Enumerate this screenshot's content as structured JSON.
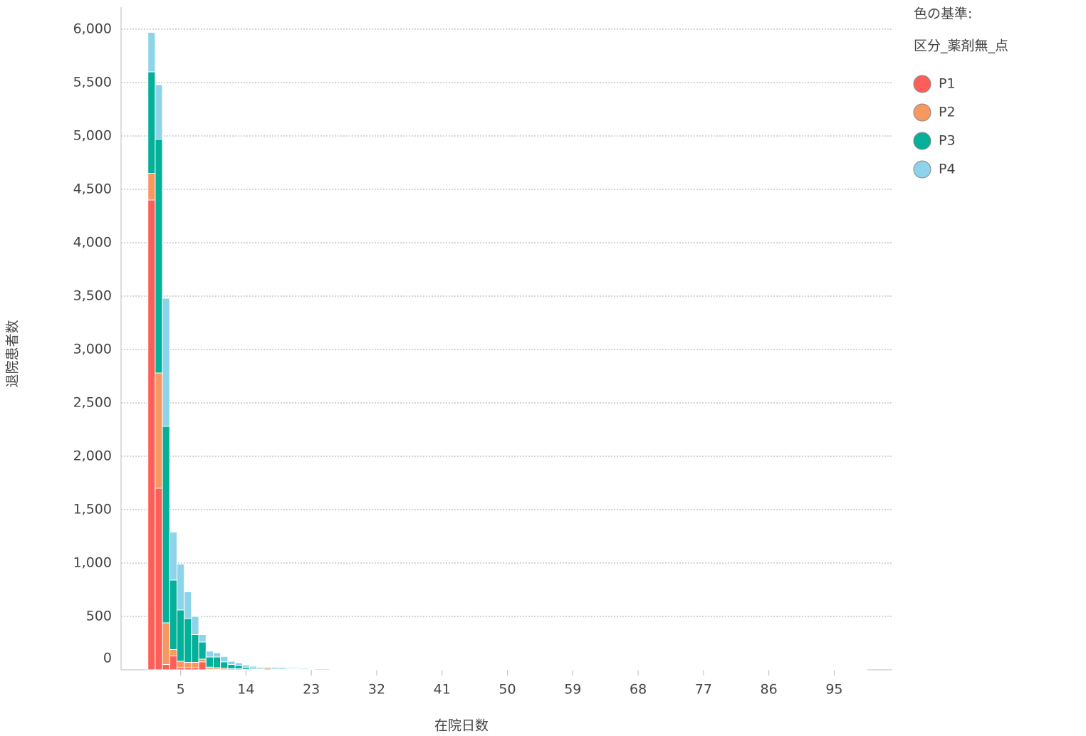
{
  "chart_data": {
    "type": "stacked_histogram",
    "y_label": "退院患者数",
    "x_label": "在院日数",
    "legend_title": [
      "色の基準:",
      "区分_薬剤無_点"
    ],
    "legend": "right-top",
    "grid": true,
    "xlim": [
      -3.2,
      103
    ],
    "xticks": [
      5,
      14,
      23,
      32,
      41,
      50,
      59,
      68,
      77,
      86,
      95
    ],
    "ylim": [
      0,
      6000
    ],
    "yticks": [
      0,
      500,
      {
        "value": 1000,
        "label": "1,000"
      },
      {
        "value": 1500,
        "label": "1,500"
      },
      {
        "value": 2000,
        "label": "2,000"
      },
      {
        "value": 2500,
        "label": "2,500"
      },
      {
        "value": 3000,
        "label": "3,000"
      },
      {
        "value": 3500,
        "label": "3,500"
      },
      {
        "value": 4000,
        "label": "4,000"
      },
      {
        "value": 4500,
        "label": "4,500"
      },
      {
        "value": 5000,
        "label": "5,000"
      },
      {
        "value": 5500,
        "label": "5,500"
      },
      {
        "value": 6000,
        "label": "6,000"
      }
    ],
    "x": [
      1,
      2,
      3,
      4,
      5,
      6,
      7,
      8,
      9,
      10,
      11,
      12,
      13,
      14,
      15,
      16,
      17,
      18,
      19,
      20,
      21,
      22,
      23,
      24,
      25,
      26,
      27,
      28,
      29,
      30,
      31,
      32,
      33,
      34,
      35,
      36,
      37,
      38,
      39,
      40,
      41,
      42,
      43,
      44,
      45,
      46,
      47,
      48,
      49,
      50,
      51,
      52,
      53,
      54,
      55,
      56,
      57,
      58,
      59,
      60,
      61,
      62,
      63,
      64,
      65,
      66,
      67,
      68,
      69,
      70,
      71,
      72,
      73,
      74,
      75,
      76,
      77,
      78,
      79,
      80,
      81,
      82,
      83,
      84,
      85,
      86,
      87,
      88,
      89,
      90,
      91,
      92,
      93,
      94,
      95,
      96,
      97,
      98,
      99
    ],
    "series": [
      {
        "name": "P1",
        "color": "#fd5f58",
        "values": [
          4400,
          1700,
          50,
          130,
          20,
          20,
          20,
          75,
          5,
          5,
          0,
          0,
          0,
          0,
          5,
          0,
          0,
          0,
          0,
          0,
          0,
          0,
          0,
          0,
          0,
          0,
          0,
          0,
          0,
          0,
          0,
          0,
          0,
          0,
          0,
          0,
          0,
          0,
          0,
          0,
          0,
          0,
          0,
          0,
          0,
          5,
          0,
          0,
          0,
          0,
          0,
          0,
          0,
          0,
          0,
          0,
          0,
          0,
          0,
          0,
          0,
          0,
          0,
          0,
          0,
          0,
          0,
          0,
          0,
          0,
          0,
          0,
          0,
          0,
          0,
          0,
          0,
          0,
          0,
          0,
          0,
          0,
          0,
          5,
          0,
          0,
          0,
          0,
          0,
          0,
          0,
          0,
          0,
          0,
          0,
          0,
          0,
          0,
          0
        ]
      },
      {
        "name": "P2",
        "color": "#f8975f",
        "values": [
          250,
          1080,
          390,
          60,
          60,
          50,
          50,
          25,
          20,
          15,
          15,
          10,
          10,
          5,
          5,
          5,
          15,
          5,
          5,
          5,
          5,
          0,
          0,
          0,
          0,
          0,
          0,
          0,
          0,
          0,
          0,
          0,
          0,
          0,
          0,
          0,
          0,
          0,
          0,
          0,
          0,
          0,
          0,
          0,
          5,
          5,
          0,
          5,
          5,
          0,
          5,
          5,
          0,
          0,
          5,
          5,
          5,
          0,
          5,
          5,
          0,
          5,
          5,
          5,
          5,
          0,
          5,
          5,
          0,
          0,
          5,
          5,
          0,
          5,
          5,
          0,
          0,
          5,
          0,
          5,
          5,
          5,
          0,
          0,
          5,
          0,
          0,
          5,
          5,
          0,
          5,
          5,
          5,
          5,
          5,
          0,
          5,
          0,
          0
        ]
      },
      {
        "name": "P3",
        "color": "#03b09a",
        "values": [
          950,
          2190,
          1840,
          650,
          480,
          410,
          260,
          160,
          95,
          100,
          60,
          40,
          30,
          20,
          15,
          10,
          10,
          10,
          10,
          5,
          5,
          5,
          5,
          0,
          0,
          0,
          0,
          0,
          0,
          0,
          0,
          5,
          5,
          0,
          0,
          0,
          0,
          0,
          5,
          5,
          5,
          0,
          0,
          5,
          0,
          0,
          0,
          0,
          5,
          5,
          0,
          0,
          5,
          0,
          0,
          5,
          5,
          0,
          0,
          0,
          5,
          0,
          0,
          0,
          0,
          5,
          0,
          0,
          5,
          5,
          0,
          0,
          5,
          0,
          0,
          5,
          0,
          0,
          5,
          0,
          0,
          0,
          0,
          0,
          0,
          5,
          5,
          0,
          0,
          0,
          5,
          0,
          0,
          0,
          0,
          0,
          0,
          0,
          0
        ]
      },
      {
        "name": "P4",
        "color": "#8dd4ea",
        "values": [
          370,
          510,
          1200,
          450,
          430,
          250,
          170,
          70,
          55,
          40,
          50,
          30,
          25,
          20,
          10,
          10,
          5,
          10,
          10,
          10,
          10,
          10,
          5,
          10,
          10,
          5,
          5,
          5,
          5,
          5,
          5,
          5,
          5,
          5,
          5,
          5,
          5,
          5,
          5,
          5,
          5,
          5,
          5,
          5,
          5,
          5,
          5,
          5,
          0,
          0,
          5,
          5,
          5,
          5,
          5,
          5,
          0,
          5,
          5,
          5,
          5,
          5,
          5,
          5,
          5,
          5,
          5,
          5,
          5,
          5,
          5,
          5,
          5,
          5,
          5,
          5,
          5,
          5,
          5,
          5,
          5,
          5,
          5,
          5,
          5,
          5,
          5,
          5,
          5,
          5,
          5,
          5,
          5,
          5,
          5,
          5,
          5,
          5,
          5
        ]
      }
    ]
  }
}
